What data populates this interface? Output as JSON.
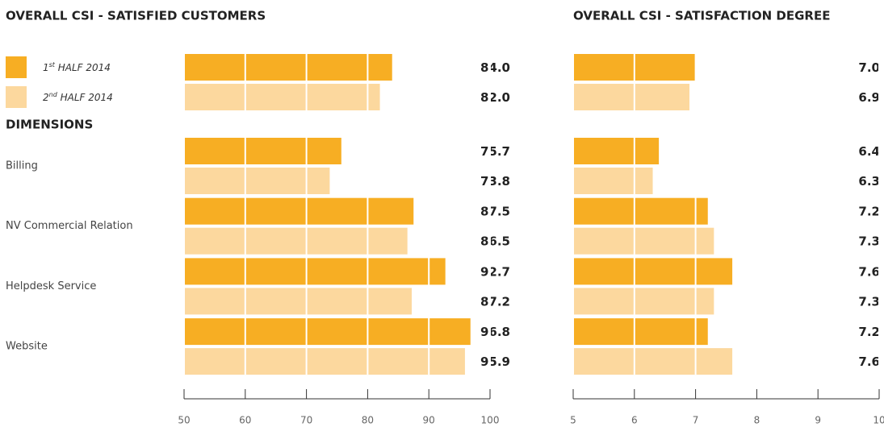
{
  "chart_data": [
    {
      "type": "bar",
      "orientation": "horizontal",
      "title": "OVERALL CSI - SATISFIED CUSTOMERS",
      "group_label": "DIMENSIONS",
      "categories": [
        null,
        "Billing",
        "NV Commercial Relation",
        "Helpdesk Service",
        "Website"
      ],
      "series": [
        {
          "name": "1st HALF 2014",
          "color": "#f7ae23",
          "values": [
            84.0,
            75.7,
            87.5,
            92.7,
            96.8
          ],
          "value_labels": [
            "84.0",
            "75.7",
            "87.5",
            "92.7",
            "96.8"
          ]
        },
        {
          "name": "2nd HALF 2014",
          "color": "#fcd89e",
          "values": [
            82.0,
            73.8,
            86.5,
            87.2,
            95.9
          ],
          "value_labels": [
            "82.0",
            "73.8",
            "86.5",
            "87.2",
            "95.9"
          ]
        }
      ],
      "xlim": [
        50,
        100
      ],
      "xticks": [
        50,
        60,
        70,
        80,
        90,
        100
      ],
      "grid": true
    },
    {
      "type": "bar",
      "orientation": "horizontal",
      "title": "OVERALL CSI - SATISFACTION DEGREE",
      "series": [
        {
          "color": "#f7ae23",
          "values": [
            7.0,
            6.4,
            7.2,
            7.6,
            7.2
          ],
          "value_labels": [
            "7.0",
            "6.4",
            "7.2",
            "7.6",
            "7.2"
          ]
        },
        {
          "color": "#fcd89e",
          "values": [
            6.9,
            6.3,
            7.3,
            7.3,
            7.6
          ],
          "value_labels": [
            "6.9",
            "6.3",
            "7.3",
            "7.3",
            "7.6"
          ]
        }
      ],
      "xlim": [
        5,
        10
      ],
      "xticks": [
        5,
        6,
        7,
        8,
        9,
        10
      ],
      "grid": true
    }
  ]
}
